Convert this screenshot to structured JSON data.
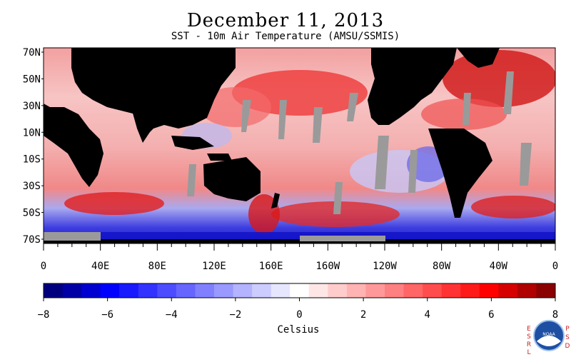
{
  "title": "December 11, 2013",
  "subtitle": "SST - 10m Air Temperature (AMSU/SSMIS)",
  "map": {
    "lat_labels": [
      "70N",
      "50N",
      "30N",
      "10N",
      "10S",
      "30S",
      "50S",
      "70S"
    ],
    "lon_labels": [
      "0",
      "40E",
      "80E",
      "120E",
      "160E",
      "160W",
      "120W",
      "80W",
      "40W",
      "0"
    ],
    "colors": {
      "land": "#000000",
      "no_data": "#9a9a9a"
    }
  },
  "colorbar": {
    "label": "Celsius",
    "tick_labels": [
      "−8",
      "−6",
      "−4",
      "−2",
      "0",
      "2",
      "4",
      "6",
      "8"
    ],
    "range": [
      -8,
      8
    ],
    "colors": [
      "#00007f",
      "#0000a6",
      "#0000d0",
      "#0000ff",
      "#1a1aff",
      "#3333ff",
      "#4d4dff",
      "#6666ff",
      "#8080ff",
      "#9999ff",
      "#b3b3ff",
      "#ccccff",
      "#e6e6ff",
      "#ffffff",
      "#ffe6e6",
      "#ffcccc",
      "#ffb3b3",
      "#ff9999",
      "#ff8080",
      "#ff6666",
      "#ff4d4d",
      "#ff3333",
      "#ff1a1a",
      "#ff0000",
      "#d60000",
      "#b00000",
      "#8b0000"
    ]
  },
  "logo": {
    "left_text": "ESRL",
    "right_text": "PSD",
    "center_text": "NOAA",
    "colors": {
      "text": "#cc2222",
      "circle": "#1e4fa3"
    }
  }
}
